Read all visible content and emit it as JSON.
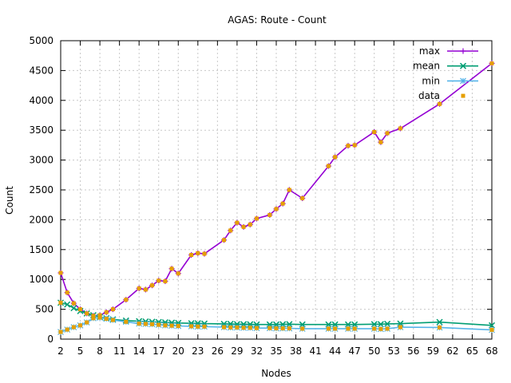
{
  "chart_data": {
    "type": "line",
    "title": "AGAS: Route - Count",
    "xlabel": "Nodes",
    "ylabel": "Count",
    "xlim": [
      2,
      68
    ],
    "ylim": [
      0,
      5000
    ],
    "grid": true,
    "legend_placement": "top-right",
    "x_ticks": [
      2,
      5,
      8,
      11,
      14,
      17,
      20,
      23,
      26,
      29,
      32,
      35,
      38,
      41,
      44,
      47,
      50,
      53,
      56,
      59,
      62,
      65,
      68
    ],
    "y_ticks": [
      0,
      500,
      1000,
      1500,
      2000,
      2500,
      3000,
      3500,
      4000,
      4500,
      5000
    ],
    "x_tick_labels": [
      "2",
      "5",
      "8",
      "11",
      "14",
      "17",
      "20",
      "23",
      "26",
      "29",
      "32",
      "35",
      "38",
      "41",
      "44",
      "47",
      "50",
      "53",
      "56",
      "59",
      "62",
      "65",
      "68"
    ],
    "y_tick_labels": [
      "0",
      "500",
      "1000",
      "1500",
      "2000",
      "2500",
      "3000",
      "3500",
      "4000",
      "4500",
      "5000"
    ],
    "series": [
      {
        "name": "max",
        "color": "#9400d3",
        "marker": "plus",
        "points": [
          [
            2,
            1110
          ],
          [
            3,
            780
          ],
          [
            4,
            600
          ],
          [
            5,
            500
          ],
          [
            6,
            430
          ],
          [
            7,
            390
          ],
          [
            8,
            400
          ],
          [
            9,
            450
          ],
          [
            10,
            500
          ],
          [
            12,
            660
          ],
          [
            14,
            850
          ],
          [
            15,
            830
          ],
          [
            16,
            900
          ],
          [
            17,
            980
          ],
          [
            18,
            970
          ],
          [
            19,
            1180
          ],
          [
            20,
            1100
          ],
          [
            22,
            1410
          ],
          [
            23,
            1440
          ],
          [
            24,
            1430
          ],
          [
            27,
            1660
          ],
          [
            28,
            1820
          ],
          [
            29,
            1950
          ],
          [
            30,
            1880
          ],
          [
            31,
            1920
          ],
          [
            32,
            2020
          ],
          [
            34,
            2080
          ],
          [
            35,
            2180
          ],
          [
            36,
            2270
          ],
          [
            37,
            2500
          ],
          [
            39,
            2360
          ],
          [
            43,
            2900
          ],
          [
            44,
            3050
          ],
          [
            46,
            3240
          ],
          [
            47,
            3250
          ],
          [
            50,
            3470
          ],
          [
            51,
            3300
          ],
          [
            52,
            3450
          ],
          [
            54,
            3530
          ],
          [
            60,
            3940
          ],
          [
            68,
            4620
          ]
        ]
      },
      {
        "name": "mean",
        "color": "#009e73",
        "marker": "cross",
        "points": [
          [
            2,
            610
          ],
          [
            3,
            580
          ],
          [
            4,
            520
          ],
          [
            5,
            470
          ],
          [
            6,
            430
          ],
          [
            7,
            400
          ],
          [
            8,
            370
          ],
          [
            9,
            350
          ],
          [
            10,
            330
          ],
          [
            12,
            310
          ],
          [
            14,
            300
          ],
          [
            15,
            295
          ],
          [
            16,
            290
          ],
          [
            17,
            285
          ],
          [
            18,
            280
          ],
          [
            19,
            275
          ],
          [
            20,
            270
          ],
          [
            22,
            265
          ],
          [
            23,
            265
          ],
          [
            24,
            260
          ],
          [
            27,
            255
          ],
          [
            28,
            255
          ],
          [
            29,
            250
          ],
          [
            30,
            250
          ],
          [
            31,
            248
          ],
          [
            32,
            245
          ],
          [
            34,
            245
          ],
          [
            35,
            245
          ],
          [
            36,
            248
          ],
          [
            37,
            250
          ],
          [
            39,
            245
          ],
          [
            43,
            245
          ],
          [
            44,
            245
          ],
          [
            46,
            245
          ],
          [
            47,
            245
          ],
          [
            50,
            250
          ],
          [
            51,
            250
          ],
          [
            52,
            255
          ],
          [
            54,
            260
          ],
          [
            60,
            285
          ],
          [
            68,
            230
          ]
        ]
      },
      {
        "name": "min",
        "color": "#56b4e9",
        "marker": "star",
        "points": [
          [
            2,
            120
          ],
          [
            3,
            160
          ],
          [
            4,
            200
          ],
          [
            5,
            230
          ],
          [
            6,
            280
          ],
          [
            7,
            350
          ],
          [
            8,
            360
          ],
          [
            9,
            340
          ],
          [
            10,
            320
          ],
          [
            12,
            290
          ],
          [
            14,
            260
          ],
          [
            15,
            255
          ],
          [
            16,
            250
          ],
          [
            17,
            240
          ],
          [
            18,
            230
          ],
          [
            19,
            225
          ],
          [
            20,
            220
          ],
          [
            22,
            215
          ],
          [
            23,
            210
          ],
          [
            24,
            210
          ],
          [
            27,
            200
          ],
          [
            28,
            195
          ],
          [
            29,
            195
          ],
          [
            30,
            190
          ],
          [
            31,
            190
          ],
          [
            32,
            185
          ],
          [
            34,
            185
          ],
          [
            35,
            180
          ],
          [
            36,
            180
          ],
          [
            37,
            180
          ],
          [
            39,
            175
          ],
          [
            43,
            175
          ],
          [
            44,
            175
          ],
          [
            46,
            175
          ],
          [
            47,
            175
          ],
          [
            50,
            175
          ],
          [
            51,
            170
          ],
          [
            52,
            175
          ],
          [
            54,
            200
          ],
          [
            60,
            195
          ],
          [
            68,
            155
          ]
        ]
      },
      {
        "name": "data",
        "color": "#e69f00",
        "marker": "square",
        "points": [
          [
            2,
            1110
          ],
          [
            2,
            610
          ],
          [
            2,
            120
          ],
          [
            3,
            780
          ],
          [
            3,
            160
          ],
          [
            4,
            600
          ],
          [
            4,
            200
          ],
          [
            5,
            500
          ],
          [
            5,
            230
          ],
          [
            6,
            430
          ],
          [
            6,
            280
          ],
          [
            7,
            390
          ],
          [
            7,
            350
          ],
          [
            8,
            400
          ],
          [
            8,
            360
          ],
          [
            9,
            450
          ],
          [
            9,
            340
          ],
          [
            10,
            500
          ],
          [
            10,
            320
          ],
          [
            12,
            660
          ],
          [
            12,
            290
          ],
          [
            14,
            850
          ],
          [
            14,
            260
          ],
          [
            15,
            830
          ],
          [
            15,
            255
          ],
          [
            16,
            900
          ],
          [
            16,
            250
          ],
          [
            17,
            980
          ],
          [
            17,
            240
          ],
          [
            18,
            970
          ],
          [
            18,
            230
          ],
          [
            19,
            1180
          ],
          [
            19,
            225
          ],
          [
            20,
            1100
          ],
          [
            20,
            220
          ],
          [
            22,
            1410
          ],
          [
            22,
            215
          ],
          [
            23,
            1440
          ],
          [
            23,
            210
          ],
          [
            24,
            1430
          ],
          [
            24,
            210
          ],
          [
            27,
            1660
          ],
          [
            27,
            200
          ],
          [
            28,
            1820
          ],
          [
            28,
            195
          ],
          [
            29,
            1950
          ],
          [
            29,
            195
          ],
          [
            30,
            1880
          ],
          [
            30,
            190
          ],
          [
            31,
            1920
          ],
          [
            31,
            190
          ],
          [
            32,
            2020
          ],
          [
            32,
            185
          ],
          [
            34,
            2080
          ],
          [
            34,
            185
          ],
          [
            35,
            2180
          ],
          [
            35,
            180
          ],
          [
            36,
            2270
          ],
          [
            36,
            180
          ],
          [
            37,
            2500
          ],
          [
            37,
            180
          ],
          [
            39,
            2360
          ],
          [
            39,
            175
          ],
          [
            43,
            2900
          ],
          [
            43,
            175
          ],
          [
            44,
            3050
          ],
          [
            44,
            175
          ],
          [
            46,
            3240
          ],
          [
            46,
            175
          ],
          [
            47,
            3250
          ],
          [
            47,
            175
          ],
          [
            50,
            3470
          ],
          [
            50,
            175
          ],
          [
            51,
            3300
          ],
          [
            51,
            170
          ],
          [
            52,
            3450
          ],
          [
            52,
            175
          ],
          [
            54,
            3530
          ],
          [
            54,
            200
          ],
          [
            60,
            3940
          ],
          [
            60,
            195
          ],
          [
            68,
            4620
          ],
          [
            68,
            155
          ]
        ]
      }
    ]
  }
}
